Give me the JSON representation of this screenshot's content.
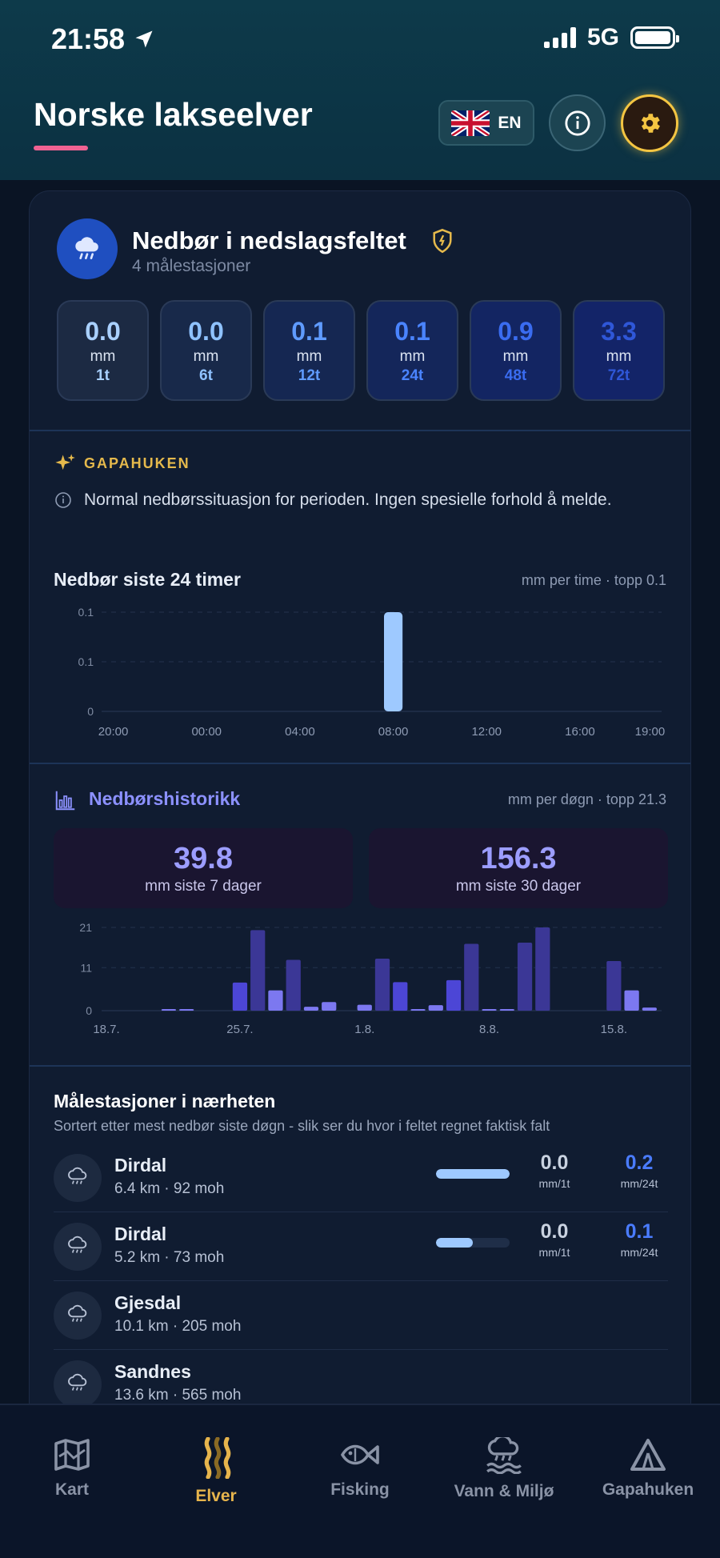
{
  "status": {
    "time": "21:58",
    "network": "5G"
  },
  "header": {
    "title": "Norske lakseelver",
    "lang_label": "EN"
  },
  "precip": {
    "title": "Nedbør i nedslagsfeltet",
    "subtitle": "4 målestasjoner",
    "tiles": [
      {
        "value": "0.0",
        "unit": "mm",
        "period": "1t",
        "color": "#a9d0ff",
        "bg": "#1c2a43"
      },
      {
        "value": "0.0",
        "unit": "mm",
        "period": "6t",
        "color": "#8fc2ff",
        "bg": "#18294a"
      },
      {
        "value": "0.1",
        "unit": "mm",
        "period": "12t",
        "color": "#5f9bff",
        "bg": "#152752"
      },
      {
        "value": "0.1",
        "unit": "mm",
        "period": "24t",
        "color": "#4a84ff",
        "bg": "#14265a"
      },
      {
        "value": "0.9",
        "unit": "mm",
        "period": "48t",
        "color": "#3a6cf0",
        "bg": "#132562"
      },
      {
        "value": "3.3",
        "unit": "mm",
        "period": "72t",
        "color": "#2f57d8",
        "bg": "#132468"
      }
    ]
  },
  "ai": {
    "label": "GAPAHUKEN",
    "text": "Normal nedbørssituasjon for perioden. Ingen spesielle forhold å melde."
  },
  "hourly": {
    "title": "Nedbør siste 24 timer",
    "meta": "mm per time · topp 0.1"
  },
  "history": {
    "title": "Nedbørshistorikk",
    "meta": "mm per døgn · topp 21.3",
    "sum7_value": "39.8",
    "sum7_label": "mm siste 7 dager",
    "sum30_value": "156.3",
    "sum30_label": "mm siste 30 dager"
  },
  "chart_data": [
    {
      "type": "bar",
      "y_ticks": [
        "0",
        "0.1",
        "0.1"
      ],
      "x_ticks": [
        "20:00",
        "00:00",
        "04:00",
        "08:00",
        "12:00",
        "16:00",
        "19:00"
      ],
      "x": [
        "20:00",
        "21:00",
        "22:00",
        "23:00",
        "00:00",
        "01:00",
        "02:00",
        "03:00",
        "04:00",
        "05:00",
        "06:00",
        "07:00",
        "08:00",
        "09:00",
        "10:00",
        "11:00",
        "12:00",
        "13:00",
        "14:00",
        "15:00",
        "16:00",
        "17:00",
        "18:00",
        "19:00"
      ],
      "values": [
        0,
        0,
        0,
        0,
        0,
        0,
        0,
        0,
        0,
        0,
        0,
        0,
        0.1,
        0,
        0,
        0,
        0,
        0,
        0,
        0,
        0,
        0,
        0,
        0
      ],
      "ylim": [
        0,
        0.1
      ],
      "bar_color": "#9ec9ff",
      "grid": true
    },
    {
      "type": "bar",
      "y_ticks": [
        "0",
        "11",
        "21"
      ],
      "x_ticks": [
        "18.7.",
        "25.7.",
        "1.8.",
        "8.8.",
        "15.8."
      ],
      "x": [
        "18.7.",
        "19.7.",
        "20.7.",
        "21.7.",
        "22.7.",
        "23.7.",
        "24.7.",
        "25.7.",
        "26.7.",
        "27.7.",
        "28.7.",
        "29.7.",
        "30.7.",
        "31.7.",
        "1.8.",
        "2.8.",
        "3.8.",
        "4.8.",
        "5.8.",
        "6.8.",
        "7.8.",
        "8.8.",
        "9.8.",
        "10.8.",
        "11.8.",
        "12.8.",
        "13.8.",
        "14.8.",
        "15.8.",
        "16.8.",
        "17.8."
      ],
      "values": [
        0,
        0,
        0,
        0.4,
        0.3,
        0,
        0,
        7.2,
        20.6,
        5.2,
        13,
        1,
        2.2,
        0,
        1.5,
        13.3,
        7.3,
        0.3,
        1.4,
        7.8,
        17.1,
        0.3,
        0.4,
        17.4,
        21.3,
        0,
        0,
        0,
        12.7,
        5.2,
        0.8
      ],
      "ylim": [
        0,
        21.3
      ],
      "grid": true
    }
  ],
  "stations": {
    "title": "Målestasjoner i nærheten",
    "subtitle": "Sortert etter mest nedbør siste døgn - slik ser du hvor i feltet regnet faktisk falt",
    "rows": [
      {
        "name": "Dirdal",
        "detail": "6.4 km · 92 moh",
        "bar_fraction": 1.0,
        "v1": "0.0",
        "u1": "mm/1t",
        "v2": "0.2",
        "u2": "mm/24t"
      },
      {
        "name": "Dirdal",
        "detail": "5.2 km · 73 moh",
        "bar_fraction": 0.5,
        "v1": "0.0",
        "u1": "mm/1t",
        "v2": "0.1",
        "u2": "mm/24t"
      },
      {
        "name": "Gjesdal",
        "detail": "10.1 km · 205 moh"
      },
      {
        "name": "Sandnes",
        "detail": "13.6 km · 565 moh"
      }
    ]
  },
  "nav": {
    "items": [
      {
        "label": "Kart",
        "icon": "map-icon"
      },
      {
        "label": "Elver",
        "icon": "river-icon",
        "active": true
      },
      {
        "label": "Fisking",
        "icon": "fish-icon"
      },
      {
        "label": "Vann & Miljø",
        "icon": "weather-water-icon"
      },
      {
        "label": "Gapahuken",
        "icon": "shelter-icon"
      }
    ]
  }
}
